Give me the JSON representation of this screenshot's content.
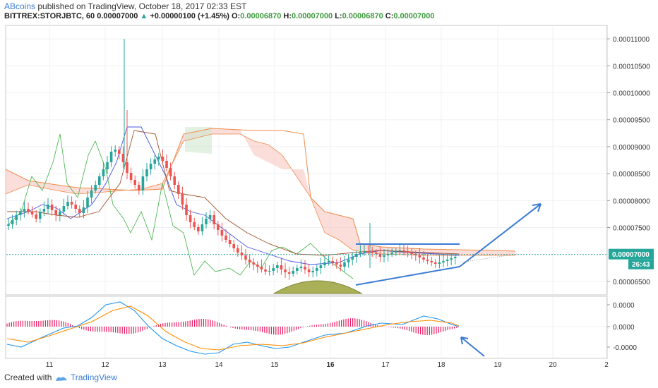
{
  "header": {
    "author": "ABcoins",
    "published_text": "published on TradingView, October 18, 2017 02:33 EST",
    "symbol": "BITTREX:STORJBTC, 60",
    "last": "0.00007000",
    "change_arrow": "▲",
    "change": "+0.00000100 (+1.45%)",
    "o_label": "O:",
    "o_value": "0.00006870",
    "h_label": "H:",
    "h_value": "0.00007000",
    "l_label": "L:",
    "l_value": "0.00006870",
    "c_label": "C:",
    "c_value": "0.00007000"
  },
  "footer": {
    "created_with": "Created with",
    "brand": "TradingView"
  },
  "chart_data": {
    "type": "candlestick",
    "x_ticks": [
      "11",
      "12",
      "13",
      "14",
      "15",
      "16",
      "17",
      "18",
      "19",
      "20",
      "2"
    ],
    "main_price_ticks": [
      "0.00011000",
      "0.00010500",
      "0.00010000",
      "0.00009500",
      "0.00009000",
      "0.00008500",
      "0.00008000",
      "0.00007500",
      "0.00006500"
    ],
    "main_ylim": [
      6.25e-05,
      0.0001125
    ],
    "price_label": "0.00007000",
    "countdown_label": "26:43",
    "indicator_ticks": [
      "0.0000",
      "0.0000",
      "-0.0000"
    ],
    "colors": {
      "up": "#26a69a",
      "down": "#ef5350",
      "cloud": "#f8c7c0",
      "macd": "#2196f3",
      "signal": "#ff8c00",
      "trendline": "#3a7bd5",
      "histogram": "#e91e63"
    }
  }
}
